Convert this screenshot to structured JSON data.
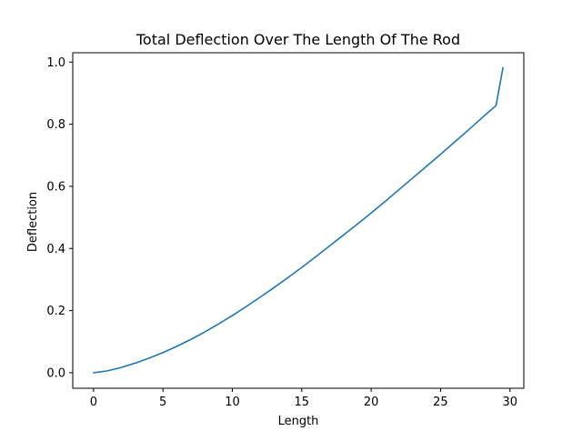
{
  "chart_data": {
    "type": "line",
    "title": "Total Deflection Over The Length Of The Rod",
    "xlabel": "Length",
    "ylabel": "Deflection",
    "xlim": [
      -1.5,
      31
    ],
    "ylim": [
      -0.05,
      1.03
    ],
    "xticks": [
      0,
      5,
      10,
      15,
      20,
      25,
      30
    ],
    "xtick_labels": [
      "0",
      "5",
      "10",
      "15",
      "20",
      "25",
      "30"
    ],
    "yticks": [
      0.0,
      0.2,
      0.4,
      0.6,
      0.8,
      1.0
    ],
    "ytick_labels": [
      "0.0",
      "0.2",
      "0.4",
      "0.6",
      "0.8",
      "1.0"
    ],
    "grid": false,
    "colors": {
      "line": "#1f77b4",
      "axes": "#000000",
      "background": "#ffffff"
    },
    "series": [
      {
        "x": [
          0,
          1,
          2,
          3,
          4,
          5,
          6,
          7,
          8,
          9,
          10,
          11,
          12,
          13,
          14,
          15,
          16,
          17,
          18,
          19,
          20,
          21,
          22,
          23,
          24,
          25,
          26,
          27,
          28,
          29,
          29.5
        ],
        "y": [
          0.0,
          0.006,
          0.017,
          0.031,
          0.047,
          0.065,
          0.085,
          0.107,
          0.131,
          0.157,
          0.184,
          0.213,
          0.243,
          0.274,
          0.306,
          0.339,
          0.373,
          0.408,
          0.443,
          0.478,
          0.514,
          0.551,
          0.589,
          0.627,
          0.665,
          0.703,
          0.742,
          0.781,
          0.821,
          0.86,
          0.982
        ]
      }
    ]
  }
}
